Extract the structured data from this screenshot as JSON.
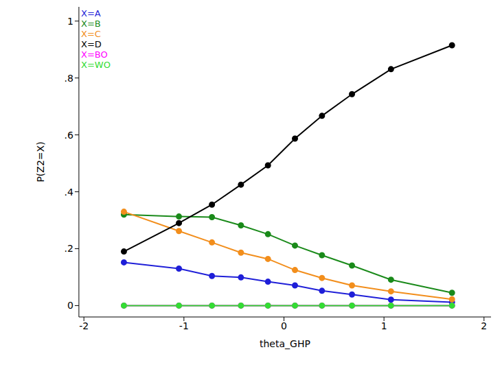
{
  "chart_data": {
    "type": "line",
    "x_label": "theta_GHP",
    "y_label": "P(Z2=X)",
    "x": [
      -1.6,
      -1.05,
      -0.72,
      -0.43,
      -0.16,
      0.11,
      0.38,
      0.68,
      1.07,
      1.68
    ],
    "series": [
      {
        "name": "X=A",
        "color": "#1f1fd8",
        "values": [
          0.152,
          0.13,
          0.104,
          0.099,
          0.084,
          0.071,
          0.052,
          0.039,
          0.021,
          0.012
        ]
      },
      {
        "name": "X=B",
        "color": "#1a8a1a",
        "values": [
          0.32,
          0.313,
          0.311,
          0.282,
          0.251,
          0.211,
          0.177,
          0.141,
          0.091,
          0.045
        ]
      },
      {
        "name": "X=C",
        "color": "#f28e1c",
        "values": [
          0.33,
          0.262,
          0.222,
          0.186,
          0.164,
          0.125,
          0.097,
          0.071,
          0.05,
          0.022
        ]
      },
      {
        "name": "X=D",
        "color": "#000000",
        "values": [
          0.19,
          0.29,
          0.355,
          0.425,
          0.493,
          0.587,
          0.667,
          0.743,
          0.831,
          0.915
        ]
      },
      {
        "name": "X=BO",
        "color": "#ff00ff",
        "values": [
          0,
          0,
          0,
          0,
          0,
          0,
          0,
          0,
          0,
          0
        ]
      },
      {
        "name": "X=WO",
        "color": "#33dd33",
        "values": [
          0,
          0,
          0,
          0,
          0,
          0,
          0,
          0,
          0,
          0
        ]
      }
    ],
    "xlim": [
      -2.05,
      2.07
    ],
    "xticks": [
      -2,
      -1,
      0,
      1,
      2
    ],
    "ylim": [
      -0.04,
      1.05
    ],
    "yticks": [
      0,
      {
        "value": 0.2,
        "label": ".2"
      },
      {
        "value": 0.4,
        "label": ".4"
      },
      {
        "value": 0.6,
        "label": ".6"
      },
      {
        "value": 0.8,
        "label": ".8"
      },
      1
    ],
    "legend": "top-left",
    "marker": "circle",
    "grid": false
  }
}
